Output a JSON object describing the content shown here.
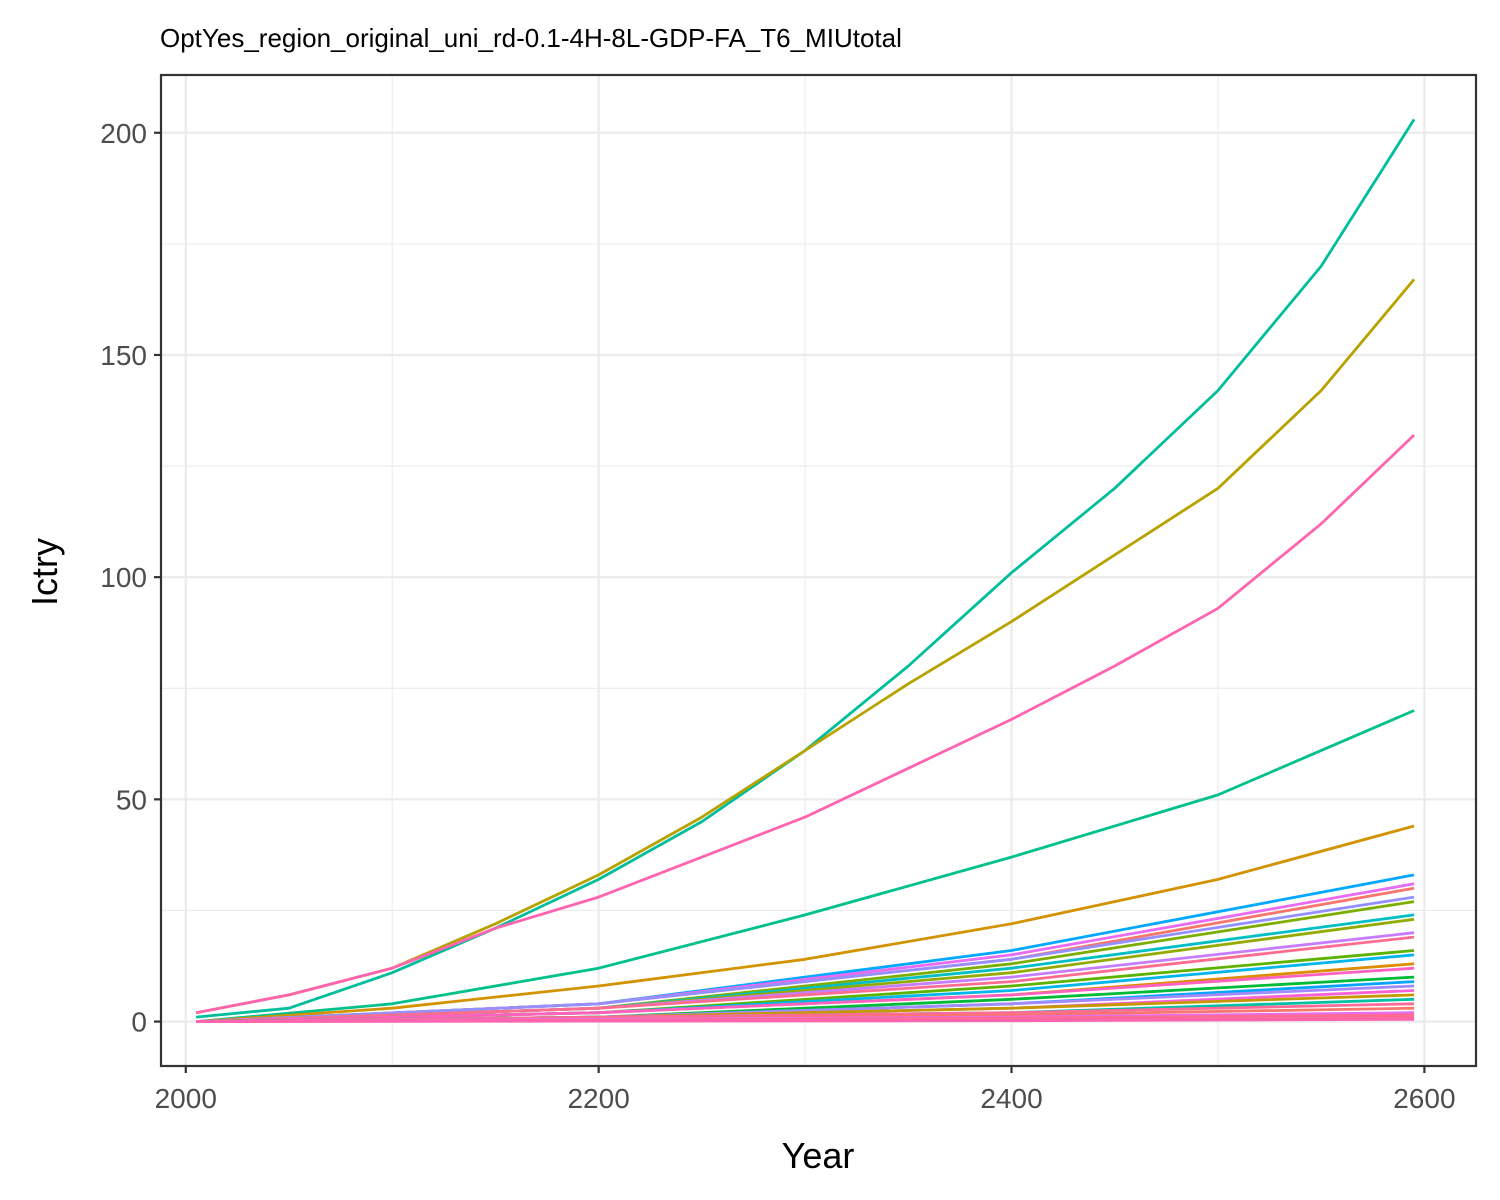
{
  "chart_data": {
    "type": "line",
    "title": "OptYes_region_original_uni_rd-0.1-4H-8L-GDP-FA_T6_MIUtotal",
    "xlabel": "Year",
    "ylabel": "Ictry",
    "xlim": [
      1988,
      2625
    ],
    "ylim": [
      -10,
      213
    ],
    "x_ticks": [
      2000,
      2200,
      2400,
      2600
    ],
    "y_ticks": [
      0,
      50,
      100,
      150,
      200
    ],
    "x_tick_labels": [
      "2000",
      "2200",
      "2400",
      "2600"
    ],
    "y_tick_labels": [
      "0",
      "50",
      "100",
      "150",
      "200"
    ],
    "grid": true,
    "legend": "none",
    "series": [
      {
        "color": "#00BE9B",
        "x": [
          2005,
          2050,
          2100,
          2150,
          2200,
          2250,
          2300,
          2350,
          2400,
          2450,
          2500,
          2550,
          2595
        ],
        "y": [
          1,
          3,
          11,
          21,
          32,
          45,
          61,
          80,
          101,
          120,
          142,
          170,
          203
        ]
      },
      {
        "color": "#B8A200",
        "x": [
          2005,
          2050,
          2100,
          2150,
          2200,
          2250,
          2300,
          2350,
          2400,
          2450,
          2500,
          2550,
          2595
        ],
        "y": [
          2,
          6,
          12,
          22,
          33,
          46,
          61,
          76,
          90,
          105,
          120,
          142,
          167
        ]
      },
      {
        "color": "#FF64B0",
        "x": [
          2005,
          2050,
          2100,
          2150,
          2200,
          2250,
          2300,
          2350,
          2400,
          2450,
          2500,
          2550,
          2595
        ],
        "y": [
          2,
          6,
          12,
          21,
          28,
          37,
          46,
          57,
          68,
          80,
          93,
          112,
          132
        ]
      },
      {
        "color": "#00C08B",
        "x": [
          2005,
          2100,
          2200,
          2300,
          2400,
          2500,
          2595
        ],
        "y": [
          0,
          4,
          12,
          24,
          37,
          51,
          70
        ]
      },
      {
        "color": "#D39200",
        "x": [
          2005,
          2100,
          2200,
          2300,
          2400,
          2500,
          2595
        ],
        "y": [
          0,
          3,
          8,
          14,
          22,
          32,
          44
        ]
      },
      {
        "color": "#00A9FF",
        "x": [
          2005,
          2200,
          2400,
          2595
        ],
        "y": [
          0,
          4,
          16,
          33
        ]
      },
      {
        "color": "#E76BF3",
        "x": [
          2005,
          2200,
          2400,
          2595
        ],
        "y": [
          0,
          4,
          15,
          31
        ]
      },
      {
        "color": "#F8766D",
        "x": [
          2005,
          2200,
          2400,
          2595
        ],
        "y": [
          0,
          4,
          14,
          30
        ]
      },
      {
        "color": "#9590FF",
        "x": [
          2005,
          2200,
          2400,
          2595
        ],
        "y": [
          0,
          4,
          14,
          28
        ]
      },
      {
        "color": "#7CAE00",
        "x": [
          2005,
          2200,
          2400,
          2595
        ],
        "y": [
          0,
          3,
          13,
          27
        ]
      },
      {
        "color": "#00BFC4",
        "x": [
          2005,
          2200,
          2400,
          2595
        ],
        "y": [
          0,
          3,
          12,
          24
        ]
      },
      {
        "color": "#93AA00",
        "x": [
          2005,
          2200,
          2400,
          2595
        ],
        "y": [
          0,
          3,
          11,
          23
        ]
      },
      {
        "color": "#C77CFF",
        "x": [
          2005,
          2200,
          2400,
          2595
        ],
        "y": [
          0,
          3,
          10,
          20
        ]
      },
      {
        "color": "#FF6C91",
        "x": [
          2005,
          2200,
          2400,
          2595
        ],
        "y": [
          0,
          3,
          9,
          19
        ]
      },
      {
        "color": "#5EB300",
        "x": [
          2005,
          2200,
          2400,
          2595
        ],
        "y": [
          0,
          2,
          8,
          16
        ]
      },
      {
        "color": "#00B6EB",
        "x": [
          2005,
          2200,
          2400,
          2595
        ],
        "y": [
          0,
          2,
          7,
          15
        ]
      },
      {
        "color": "#DB8E00",
        "x": [
          2005,
          2200,
          2400,
          2595
        ],
        "y": [
          0,
          2,
          6,
          13
        ]
      },
      {
        "color": "#FF61C3",
        "x": [
          2005,
          2200,
          2400,
          2595
        ],
        "y": [
          0,
          2,
          6,
          12
        ]
      },
      {
        "color": "#00BA38",
        "x": [
          2005,
          2200,
          2400,
          2595
        ],
        "y": [
          0,
          1,
          5,
          10
        ]
      },
      {
        "color": "#06A4FF",
        "x": [
          2005,
          2200,
          2400,
          2595
        ],
        "y": [
          0,
          1,
          4,
          9
        ]
      },
      {
        "color": "#A58AFF",
        "x": [
          2005,
          2200,
          2400,
          2595
        ],
        "y": [
          0,
          1,
          4,
          8
        ]
      },
      {
        "color": "#FB61D7",
        "x": [
          2005,
          2200,
          2400,
          2595
        ],
        "y": [
          0,
          1,
          3,
          7
        ]
      },
      {
        "color": "#C49A00",
        "x": [
          2005,
          2200,
          2400,
          2595
        ],
        "y": [
          0,
          1,
          3,
          6
        ]
      },
      {
        "color": "#00C1A3",
        "x": [
          2005,
          2200,
          2400,
          2595
        ],
        "y": [
          0,
          1,
          2,
          5
        ]
      },
      {
        "color": "#FF6A98",
        "x": [
          2005,
          2200,
          2400,
          2595
        ],
        "y": [
          0,
          1,
          2,
          4
        ]
      },
      {
        "color": "#F8766D",
        "x": [
          2005,
          2200,
          2400,
          2595
        ],
        "y": [
          0,
          0.5,
          1.5,
          3
        ]
      },
      {
        "color": "#E76BF3",
        "x": [
          2005,
          2200,
          2400,
          2595
        ],
        "y": [
          0,
          0.5,
          1,
          2
        ]
      },
      {
        "color": "#FF6C91",
        "x": [
          2005,
          2200,
          2400,
          2595
        ],
        "y": [
          0,
          0.3,
          0.8,
          1.5
        ]
      },
      {
        "color": "#FF6A98",
        "x": [
          2005,
          2200,
          2400,
          2595
        ],
        "y": [
          0,
          0.2,
          0.5,
          1
        ]
      },
      {
        "color": "#FF64B0",
        "x": [
          2005,
          2200,
          2400,
          2595
        ],
        "y": [
          0,
          0.1,
          0.2,
          0.5
        ]
      }
    ]
  }
}
